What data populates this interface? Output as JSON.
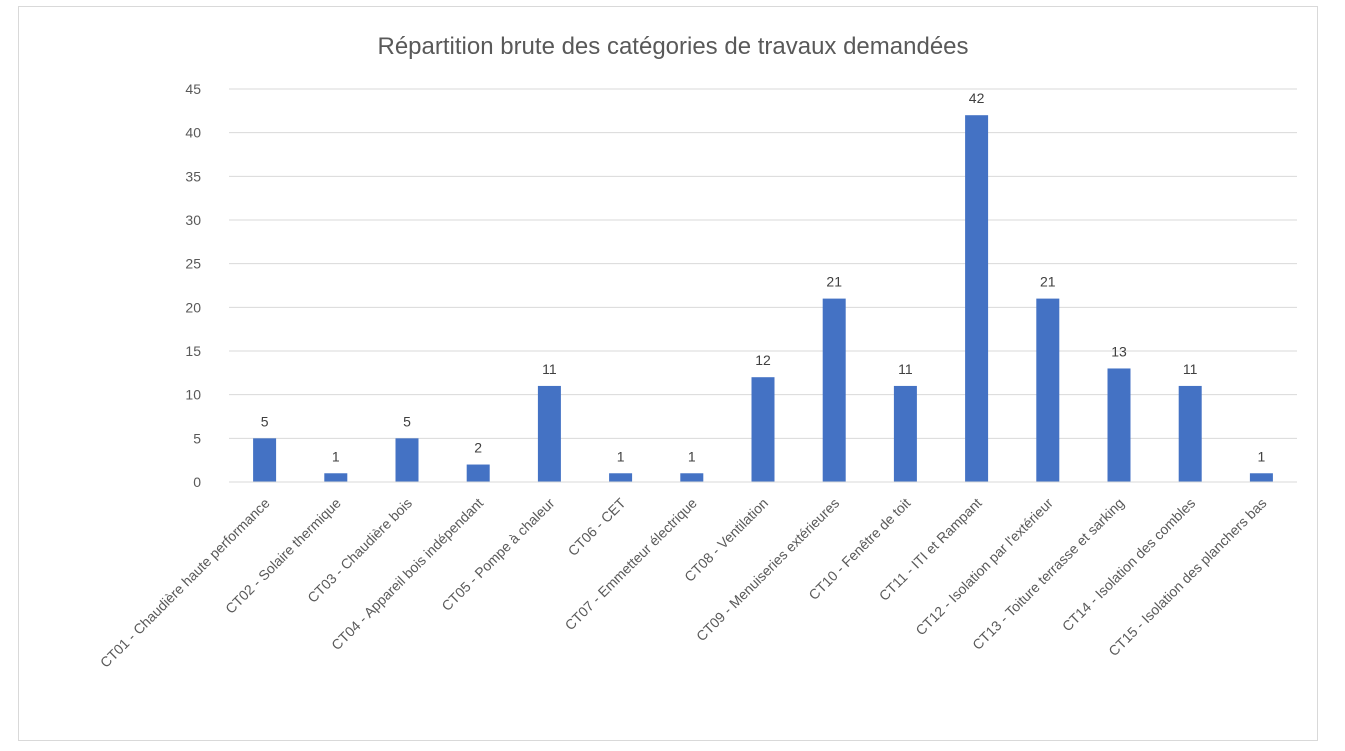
{
  "chart_data": {
    "type": "bar",
    "title": "Répartition brute des catégories de travaux demandées",
    "xlabel": "",
    "ylabel": "",
    "ylim": [
      0,
      45
    ],
    "yticks": [
      0,
      5,
      10,
      15,
      20,
      25,
      30,
      35,
      40,
      45
    ],
    "grid": true,
    "legend": "none",
    "bar_color": "#4472c4",
    "categories": [
      "CT01 - Chaudière haute performance",
      "CT02 - Solaire thermique",
      "CT03 - Chaudière bois",
      "CT04 - Appareil bois indépendant",
      "CT05 - Pompe à chaleur",
      "CT06 - CET",
      "CT07 - Emmetteur électrique",
      "CT08 - Ventilation",
      "CT09 - Menuiseries extérieures",
      "CT10 - Fenêtre de toit",
      "CT11 - ITI et Rampant",
      "CT12 - Isolation par l'extérieur",
      "CT13 - Toiture terrasse et sarking",
      "CT14 - Isolation des combles",
      "CT15 - Isolation des planchers bas"
    ],
    "values": [
      5,
      1,
      5,
      2,
      11,
      1,
      1,
      12,
      21,
      11,
      42,
      21,
      13,
      11,
      1
    ]
  }
}
